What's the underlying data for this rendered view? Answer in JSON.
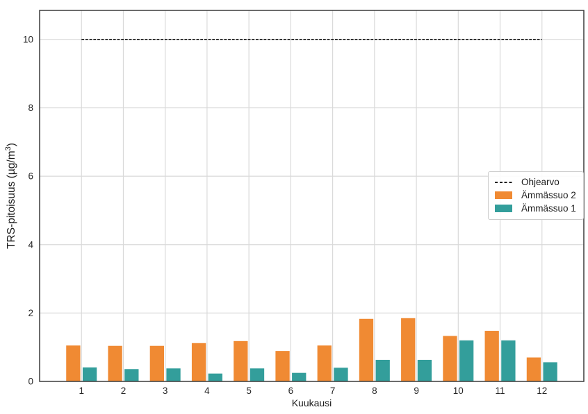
{
  "chart_data": {
    "type": "bar",
    "title": "",
    "xlabel": "Kuukausi",
    "ylabel": "TRS-pitoisuus (µg/m³)",
    "ylabel_parts": {
      "prefix": "TRS-pitoisuus (µg/m",
      "superscript": "3",
      "suffix": ")"
    },
    "categories": [
      "1",
      "2",
      "3",
      "4",
      "5",
      "6",
      "7",
      "8",
      "9",
      "10",
      "11",
      "12"
    ],
    "series": [
      {
        "name": "Ämmässuo 2",
        "color": "#F08A33",
        "values": [
          1.05,
          1.04,
          1.04,
          1.12,
          1.18,
          0.89,
          1.05,
          1.83,
          1.85,
          1.33,
          1.48,
          0.7
        ]
      },
      {
        "name": "Ämmässuo 1",
        "color": "#339E9B",
        "values": [
          0.41,
          0.36,
          0.38,
          0.23,
          0.38,
          0.25,
          0.4,
          0.63,
          0.63,
          1.2,
          1.2,
          0.56
        ]
      }
    ],
    "guideline": {
      "label": "Ohjearvo",
      "value": 10,
      "color": "#1c1c1c",
      "style": "dashed"
    },
    "yticks": [
      0,
      2,
      4,
      6,
      8,
      10
    ],
    "ylim": [
      0,
      10.85
    ],
    "grid": "both",
    "legend_position": "center-right",
    "colors": {
      "background": "#FFFFFF",
      "grid": "#D9D9D9",
      "spine": "#3B3B3B",
      "tick_label": "#262626",
      "axis_label": "#1C1C1C",
      "legend_border": "#CCCCCC"
    }
  },
  "legend": {
    "items": [
      {
        "label": "Ohjearvo",
        "swatch": "dashed-line",
        "color": "#1c1c1c"
      },
      {
        "label": "Ämmässuo 2",
        "swatch": "patch",
        "color": "#F08A33"
      },
      {
        "label": "Ämmässuo 1",
        "swatch": "patch",
        "color": "#339E9B"
      }
    ]
  }
}
